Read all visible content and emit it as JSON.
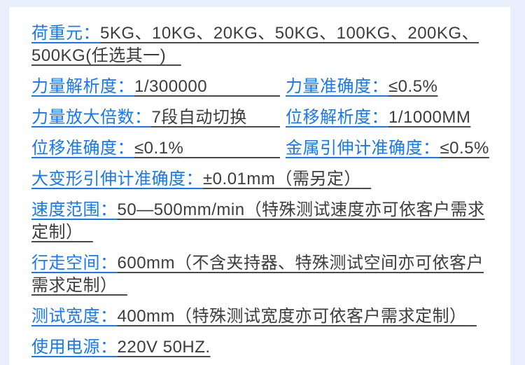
{
  "colors": {
    "page_background": "#e8eefb",
    "card_background": "#ffffff",
    "label_blue": "#1778f0",
    "value_dark": "#3c3c3c"
  },
  "rows": [
    {
      "label": "荷重元：",
      "value": "5KG、10KG、20KG、50KG、100KG、200KG、500KG(任选其一)"
    },
    {
      "col1": {
        "label": "力量解析度：",
        "value": "1/300000"
      },
      "col2": {
        "label": "力量准确度：",
        "value": "≤0.5%"
      }
    },
    {
      "col1": {
        "label": "力量放大倍数：",
        "value": "7段自动切换"
      },
      "col2": {
        "label": "位移解析度：",
        "value": "1/1000MM"
      }
    },
    {
      "col1": {
        "label": "位移准确度：",
        "value": "≤0.1%"
      },
      "col2": {
        "label": "金属引伸计准确度：",
        "value": "≤0.5%"
      }
    },
    {
      "label": "大变形引伸计准确度：",
      "value": "±0.01mm（需另定）"
    },
    {
      "label": "速度范围：",
      "value": "50—500mm/min（特殊测试速度亦可依客户需求定制）"
    },
    {
      "label": "行走空间：",
      "value": "600mm（不含夹持器、特殊测试空间亦可依客户需求定制）"
    },
    {
      "label": "测试宽度：",
      "value": "400mm（特殊测试宽度亦可依客户需求定制）"
    },
    {
      "label": "使用电源：",
      "value": "220V 50HZ."
    }
  ]
}
